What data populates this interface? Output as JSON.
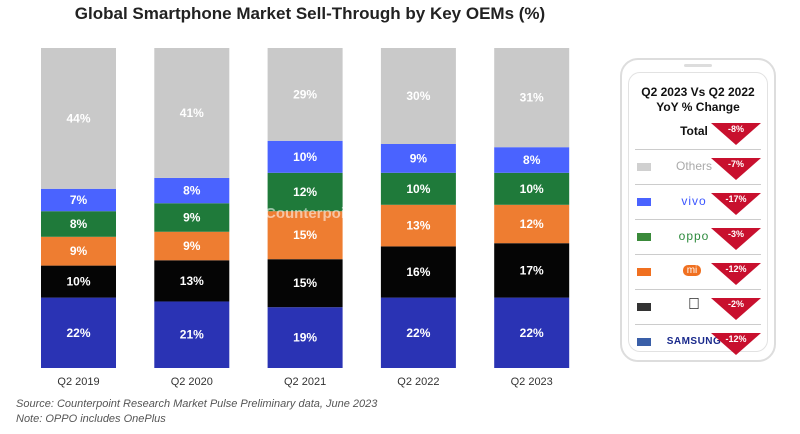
{
  "chart_data": {
    "type": "bar",
    "stacked": true,
    "title": "Global Smartphone Market Sell-Through by Key OEMs (%)",
    "categories": [
      "Q2 2019",
      "Q2 2020",
      "Q2 2021",
      "Q2 2022",
      "Q2 2023"
    ],
    "series": [
      {
        "name": "Samsung",
        "color": "#2a33b4",
        "label_color": "#ffffff",
        "values": [
          22,
          21,
          19,
          22,
          22
        ]
      },
      {
        "name": "Apple",
        "color": "#050505",
        "label_color": "#ffffff",
        "values": [
          10,
          13,
          15,
          16,
          17
        ]
      },
      {
        "name": "Xiaomi",
        "color": "#ee7d31",
        "label_color": "#ffffff",
        "values": [
          9,
          9,
          15,
          13,
          12
        ]
      },
      {
        "name": "OPPO",
        "color": "#1f7a3a",
        "label_color": "#ffffff",
        "values": [
          8,
          9,
          12,
          10,
          10
        ]
      },
      {
        "name": "vivo",
        "color": "#4a63ff",
        "label_color": "#ffffff",
        "values": [
          7,
          8,
          10,
          9,
          8
        ]
      },
      {
        "name": "Others",
        "color": "#c9c9c9",
        "label_color": "#ffffff",
        "values": [
          44,
          41,
          29,
          30,
          31
        ]
      }
    ],
    "ylim": [
      0,
      100
    ],
    "grid": false,
    "watermark": "Counterpoint"
  },
  "yoy_panel": {
    "title_line1": "Q2 2023 Vs Q2 2022",
    "title_line2": "YoY % Change",
    "rows": [
      {
        "label": "Total",
        "change": "-8%",
        "color": ""
      },
      {
        "label": "Others",
        "change": "-7%",
        "color": "#d0d0d0"
      },
      {
        "label": "vivo",
        "change": "-17%",
        "color": "#4a63ff"
      },
      {
        "label": "oppo",
        "change": "-3%",
        "color": "#3a8a3a"
      },
      {
        "label": "mi",
        "change": "-12%",
        "color": "#f07020"
      },
      {
        "label": "",
        "change": "-2%",
        "color": "#333333"
      },
      {
        "label": "SAMSUNG",
        "change": "-12%",
        "color": "#3a5fa8"
      }
    ]
  },
  "source": "Source: Counterpoint Research Market Pulse Preliminary data, June 2023",
  "note": "Note: OPPO includes OnePlus"
}
